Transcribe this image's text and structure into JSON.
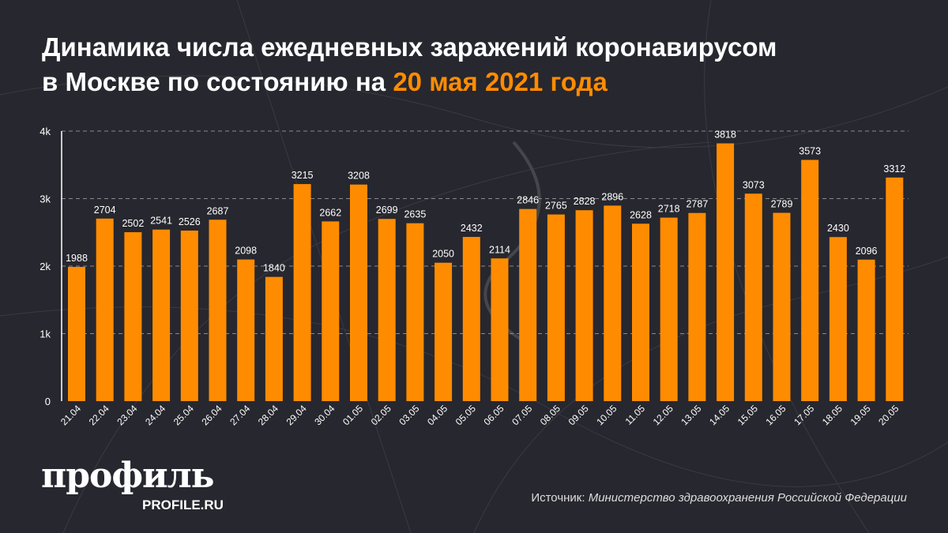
{
  "title": {
    "line1": "Динамика числа ежедневных заражений коронавирусом",
    "line2_prefix": "в Москве по состоянию на ",
    "line2_highlight": "20 мая 2021 года"
  },
  "colors": {
    "background": "#27272f",
    "bar": "#ff8c00",
    "highlight": "#ff8c00",
    "text": "#ffffff"
  },
  "chart_data": {
    "type": "bar",
    "title": "Динамика числа ежедневных заражений коронавирусом в Москве по состоянию на 20 мая 2021 года",
    "xlabel": "",
    "ylabel": "",
    "ylim": [
      0,
      4000
    ],
    "yticks": [
      0,
      1000,
      2000,
      3000,
      4000
    ],
    "ytick_labels": [
      "0",
      "1k",
      "2k",
      "3k",
      "4k"
    ],
    "grid": "horizontal dashed",
    "categories": [
      "21.04",
      "22.04",
      "23.04",
      "24.04",
      "25.04",
      "26.04",
      "27.04",
      "28.04",
      "29.04",
      "30.04",
      "01.05",
      "02.05",
      "03.05",
      "04.05",
      "05.05",
      "06.05",
      "07.05",
      "08.05",
      "09.05",
      "10.05",
      "11.05",
      "12.05",
      "13.05",
      "14.05",
      "15.05",
      "16.05",
      "17.05",
      "18.05",
      "19.05",
      "20.05"
    ],
    "values": [
      1988,
      2704,
      2502,
      2541,
      2526,
      2687,
      2098,
      1840,
      3215,
      2662,
      3208,
      2699,
      2635,
      2050,
      2432,
      2114,
      2846,
      2765,
      2828,
      2896,
      2628,
      2718,
      2787,
      3818,
      3073,
      2789,
      3573,
      2430,
      2096,
      3312
    ]
  },
  "logo": {
    "main": "профиль",
    "sub": "PROFILE.RU"
  },
  "source": {
    "label": "Источник: ",
    "text": "Министерство здравоохранения Российской Федерации"
  }
}
